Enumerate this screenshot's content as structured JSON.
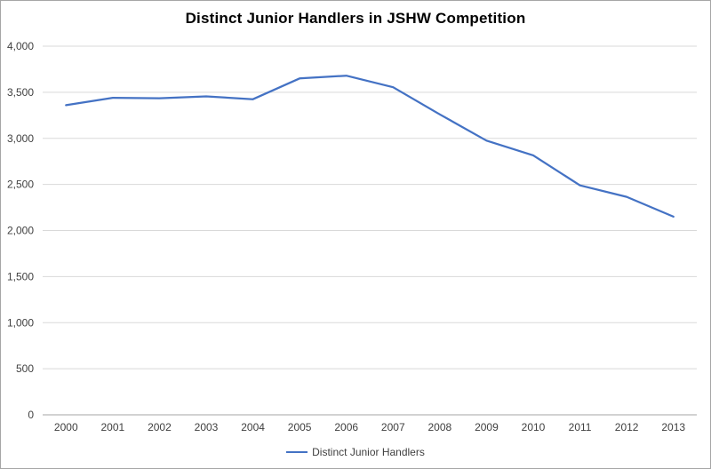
{
  "chart_data": {
    "type": "line",
    "title": "Distinct Junior Handlers in JSHW Competition",
    "xlabel": "",
    "ylabel": "",
    "categories": [
      "2000",
      "2001",
      "2002",
      "2003",
      "2004",
      "2005",
      "2006",
      "2007",
      "2008",
      "2009",
      "2010",
      "2011",
      "2012",
      "2013"
    ],
    "series": [
      {
        "name": "Distinct Junior Handlers",
        "values": [
          3360,
          3440,
          3435,
          3455,
          3425,
          3650,
          3680,
          3555,
          3260,
          2975,
          2815,
          2490,
          2365,
          2150
        ]
      }
    ],
    "ylim": [
      0,
      4000
    ],
    "yticks": [
      {
        "value": 0,
        "label": "0"
      },
      {
        "value": 500,
        "label": "500"
      },
      {
        "value": 1000,
        "label": "1,000"
      },
      {
        "value": 1500,
        "label": "1,500"
      },
      {
        "value": 2000,
        "label": "2,000"
      },
      {
        "value": 2500,
        "label": "2,500"
      },
      {
        "value": 3000,
        "label": "3,000"
      },
      {
        "value": 3500,
        "label": "3,500"
      },
      {
        "value": 4000,
        "label": "4,000"
      }
    ],
    "grid": "horizontal",
    "legend_position": "bottom",
    "colors": {
      "line": "#4472C4",
      "grid": "#D9D9D9",
      "axis": "#A6A6A6",
      "tick_text": "#404040",
      "title_text": "#000000",
      "frame_border": "#A6A6A6",
      "background": "#FFFFFF"
    }
  }
}
